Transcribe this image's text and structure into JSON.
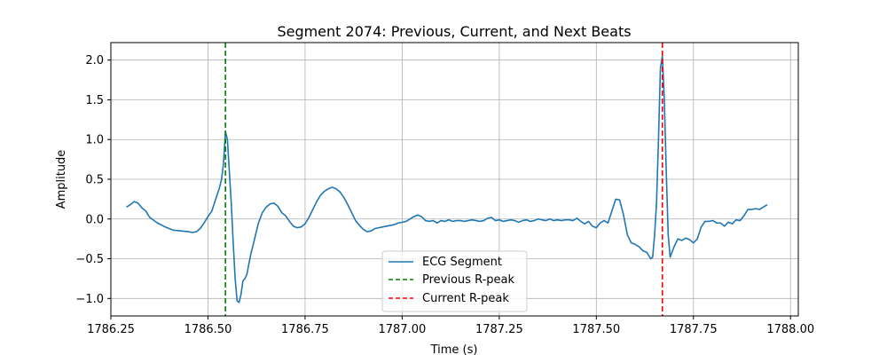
{
  "chart_data": {
    "type": "line",
    "title": "Segment 2074: Previous, Current, and Next Beats",
    "xlabel": "Time (s)",
    "ylabel": "Amplitude",
    "xlim": [
      1786.25,
      1788.02
    ],
    "ylim": [
      -1.22,
      2.22
    ],
    "x_ticks": [
      1786.25,
      1786.5,
      1786.75,
      1787.0,
      1787.25,
      1787.5,
      1787.75,
      1788.0
    ],
    "x_tick_labels": [
      "1786.25",
      "1786.50",
      "1786.75",
      "1787.00",
      "1787.25",
      "1787.50",
      "1787.75",
      "1788.00"
    ],
    "y_ticks": [
      -1.0,
      -0.5,
      0.0,
      0.5,
      1.0,
      1.5,
      2.0
    ],
    "y_tick_labels": [
      "−1.0",
      "−0.5",
      "0.0",
      "0.5",
      "1.0",
      "1.5",
      "2.0"
    ],
    "grid": true,
    "legend_position": "bottom-center",
    "series": [
      {
        "name": "ECG Segment",
        "color": "#1f77b4",
        "style": "solid",
        "points": [
          [
            1786.29,
            0.15
          ],
          [
            1786.3,
            0.18
          ],
          [
            1786.31,
            0.22
          ],
          [
            1786.32,
            0.2
          ],
          [
            1786.33,
            0.14
          ],
          [
            1786.34,
            0.1
          ],
          [
            1786.35,
            0.02
          ],
          [
            1786.37,
            -0.05
          ],
          [
            1786.39,
            -0.1
          ],
          [
            1786.41,
            -0.14
          ],
          [
            1786.43,
            -0.15
          ],
          [
            1786.45,
            -0.16
          ],
          [
            1786.46,
            -0.17
          ],
          [
            1786.47,
            -0.16
          ],
          [
            1786.48,
            -0.12
          ],
          [
            1786.49,
            -0.05
          ],
          [
            1786.5,
            0.03
          ],
          [
            1786.51,
            0.1
          ],
          [
            1786.52,
            0.25
          ],
          [
            1786.53,
            0.4
          ],
          [
            1786.535,
            0.5
          ],
          [
            1786.54,
            0.7
          ],
          [
            1786.545,
            1.1
          ],
          [
            1786.55,
            1.0
          ],
          [
            1786.555,
            0.6
          ],
          [
            1786.56,
            0.2
          ],
          [
            1786.565,
            -0.3
          ],
          [
            1786.57,
            -0.75
          ],
          [
            1786.575,
            -1.03
          ],
          [
            1786.58,
            -1.05
          ],
          [
            1786.585,
            -0.95
          ],
          [
            1786.59,
            -0.78
          ],
          [
            1786.595,
            -0.75
          ],
          [
            1786.6,
            -0.7
          ],
          [
            1786.61,
            -0.45
          ],
          [
            1786.62,
            -0.25
          ],
          [
            1786.63,
            -0.05
          ],
          [
            1786.64,
            0.08
          ],
          [
            1786.65,
            0.15
          ],
          [
            1786.66,
            0.19
          ],
          [
            1786.67,
            0.2
          ],
          [
            1786.68,
            0.16
          ],
          [
            1786.69,
            0.08
          ],
          [
            1786.7,
            0.04
          ],
          [
            1786.71,
            -0.03
          ],
          [
            1786.72,
            -0.09
          ],
          [
            1786.73,
            -0.11
          ],
          [
            1786.74,
            -0.1
          ],
          [
            1786.75,
            -0.06
          ],
          [
            1786.76,
            0.02
          ],
          [
            1786.77,
            0.12
          ],
          [
            1786.78,
            0.22
          ],
          [
            1786.79,
            0.3
          ],
          [
            1786.8,
            0.35
          ],
          [
            1786.81,
            0.38
          ],
          [
            1786.82,
            0.4
          ],
          [
            1786.83,
            0.38
          ],
          [
            1786.84,
            0.34
          ],
          [
            1786.85,
            0.27
          ],
          [
            1786.86,
            0.18
          ],
          [
            1786.87,
            0.08
          ],
          [
            1786.88,
            -0.02
          ],
          [
            1786.89,
            -0.08
          ],
          [
            1786.9,
            -0.13
          ],
          [
            1786.91,
            -0.16
          ],
          [
            1786.92,
            -0.15
          ],
          [
            1786.93,
            -0.12
          ],
          [
            1786.94,
            -0.11
          ],
          [
            1786.95,
            -0.1
          ],
          [
            1786.96,
            -0.09
          ],
          [
            1786.97,
            -0.08
          ],
          [
            1786.98,
            -0.07
          ],
          [
            1786.99,
            -0.05
          ],
          [
            1787.0,
            -0.04
          ],
          [
            1787.01,
            -0.03
          ],
          [
            1787.02,
            0.0
          ],
          [
            1787.03,
            0.03
          ],
          [
            1787.04,
            0.05
          ],
          [
            1787.05,
            0.03
          ],
          [
            1787.06,
            -0.02
          ],
          [
            1787.07,
            -0.03
          ],
          [
            1787.08,
            -0.02
          ],
          [
            1787.09,
            -0.05
          ],
          [
            1787.1,
            -0.02
          ],
          [
            1787.11,
            -0.03
          ],
          [
            1787.12,
            -0.01
          ],
          [
            1787.13,
            -0.03
          ],
          [
            1787.14,
            -0.02
          ],
          [
            1787.15,
            -0.02
          ],
          [
            1787.16,
            -0.03
          ],
          [
            1787.17,
            -0.02
          ],
          [
            1787.18,
            -0.01
          ],
          [
            1787.19,
            -0.02
          ],
          [
            1787.2,
            -0.03
          ],
          [
            1787.21,
            -0.02
          ],
          [
            1787.22,
            0.01
          ],
          [
            1787.23,
            0.02
          ],
          [
            1787.24,
            -0.02
          ],
          [
            1787.25,
            -0.01
          ],
          [
            1787.26,
            -0.03
          ],
          [
            1787.27,
            -0.02
          ],
          [
            1787.28,
            -0.01
          ],
          [
            1787.29,
            -0.02
          ],
          [
            1787.3,
            -0.04
          ],
          [
            1787.31,
            -0.02
          ],
          [
            1787.32,
            -0.01
          ],
          [
            1787.33,
            -0.03
          ],
          [
            1787.34,
            -0.02
          ],
          [
            1787.35,
            0.0
          ],
          [
            1787.36,
            -0.01
          ],
          [
            1787.37,
            -0.02
          ],
          [
            1787.38,
            0.0
          ],
          [
            1787.39,
            -0.02
          ],
          [
            1787.4,
            -0.01
          ],
          [
            1787.41,
            -0.02
          ],
          [
            1787.42,
            -0.01
          ],
          [
            1787.43,
            -0.01
          ],
          [
            1787.44,
            -0.02
          ],
          [
            1787.45,
            0.01
          ],
          [
            1787.46,
            -0.03
          ],
          [
            1787.47,
            -0.06
          ],
          [
            1787.48,
            -0.03
          ],
          [
            1787.49,
            -0.09
          ],
          [
            1787.5,
            -0.11
          ],
          [
            1787.51,
            -0.05
          ],
          [
            1787.52,
            -0.02
          ],
          [
            1787.53,
            -0.05
          ],
          [
            1787.54,
            0.1
          ],
          [
            1787.55,
            0.25
          ],
          [
            1787.56,
            0.24
          ],
          [
            1787.57,
            0.05
          ],
          [
            1787.58,
            -0.2
          ],
          [
            1787.59,
            -0.3
          ],
          [
            1787.6,
            -0.32
          ],
          [
            1787.61,
            -0.35
          ],
          [
            1787.62,
            -0.4
          ],
          [
            1787.63,
            -0.42
          ],
          [
            1787.64,
            -0.5
          ],
          [
            1787.645,
            -0.48
          ],
          [
            1787.65,
            -0.2
          ],
          [
            1787.655,
            0.2
          ],
          [
            1787.66,
            1.0
          ],
          [
            1787.665,
            1.9
          ],
          [
            1787.67,
            2.05
          ],
          [
            1787.675,
            1.5
          ],
          [
            1787.68,
            0.6
          ],
          [
            1787.685,
            -0.2
          ],
          [
            1787.69,
            -0.48
          ],
          [
            1787.7,
            -0.35
          ],
          [
            1787.71,
            -0.25
          ],
          [
            1787.72,
            -0.27
          ],
          [
            1787.73,
            -0.24
          ],
          [
            1787.74,
            -0.26
          ],
          [
            1787.75,
            -0.3
          ],
          [
            1787.76,
            -0.25
          ],
          [
            1787.77,
            -0.1
          ],
          [
            1787.78,
            -0.03
          ],
          [
            1787.79,
            -0.03
          ],
          [
            1787.8,
            -0.02
          ],
          [
            1787.81,
            -0.05
          ],
          [
            1787.82,
            -0.05
          ],
          [
            1787.83,
            -0.09
          ],
          [
            1787.84,
            -0.04
          ],
          [
            1787.85,
            -0.06
          ],
          [
            1787.86,
            -0.01
          ],
          [
            1787.87,
            -0.02
          ],
          [
            1787.88,
            0.04
          ],
          [
            1787.89,
            0.12
          ],
          [
            1787.9,
            0.12
          ],
          [
            1787.91,
            0.13
          ],
          [
            1787.92,
            0.12
          ],
          [
            1787.93,
            0.15
          ],
          [
            1787.94,
            0.18
          ]
        ]
      },
      {
        "name": "Previous R-peak",
        "color": "#008000",
        "style": "dashed",
        "x": 1786.545
      },
      {
        "name": "Current R-peak",
        "color": "#ff0000",
        "style": "dashed",
        "x": 1787.67
      }
    ]
  }
}
